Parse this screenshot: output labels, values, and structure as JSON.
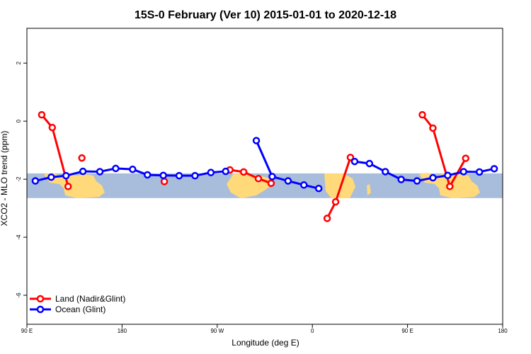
{
  "chart_data": {
    "type": "line",
    "title": "15S-0 February (Ver 10)   2015-01-01 to 2020-12-18",
    "xlabel": "Longitude (deg E)",
    "ylabel": "XCO2 - MLO trend (ppm)",
    "xlim": [
      90,
      540
    ],
    "ylim": [
      -7,
      3.2
    ],
    "x_ticks": [
      {
        "value": 90,
        "label": "90 E"
      },
      {
        "value": 180,
        "label": "180"
      },
      {
        "value": 270,
        "label": "90 W"
      },
      {
        "value": 360,
        "label": "0"
      },
      {
        "value": 450,
        "label": "90 E"
      },
      {
        "value": 540,
        "label": "180"
      }
    ],
    "y_ticks": [
      {
        "value": 2,
        "label": "2"
      },
      {
        "value": 0,
        "label": "0"
      },
      {
        "value": -2,
        "label": "-2"
      },
      {
        "value": -4,
        "label": "-4"
      },
      {
        "value": -6,
        "label": "-6"
      }
    ],
    "grid": false,
    "legend_position": "bottom-left",
    "band": {
      "ymin": -2.65,
      "ymax": -1.8,
      "color": "#a7bddb",
      "land_color": "#ffd97a"
    },
    "series": [
      {
        "name": "Land (Nadir&Glint)",
        "color": "#ff0000",
        "segments": [
          [
            [
              104,
              0.22
            ],
            [
              114,
              -0.22
            ],
            [
              129,
              -2.25
            ]
          ],
          [
            [
              142,
              -1.27
            ]
          ],
          [
            [
              220,
              -2.08
            ]
          ],
          [
            [
              282,
              -1.68
            ],
            [
              295,
              -1.75
            ],
            [
              309,
              -1.98
            ],
            [
              321,
              -2.14
            ]
          ],
          [
            [
              374,
              -3.35
            ],
            [
              382,
              -2.78
            ],
            [
              396,
              -1.25
            ]
          ],
          [
            [
              464,
              0.22
            ],
            [
              474,
              -0.24
            ],
            [
              490,
              -2.25
            ],
            [
              505,
              -1.28
            ]
          ]
        ]
      },
      {
        "name": "Ocean (Glint)",
        "color": "#0000ff",
        "segments": [
          [
            [
              98,
              -2.06
            ],
            [
              113,
              -1.93
            ],
            [
              127,
              -1.88
            ],
            [
              143,
              -1.73
            ],
            [
              159,
              -1.74
            ],
            [
              174,
              -1.63
            ],
            [
              190,
              -1.66
            ],
            [
              204,
              -1.85
            ],
            [
              219,
              -1.87
            ],
            [
              234,
              -1.88
            ],
            [
              249,
              -1.88
            ],
            [
              264,
              -1.77
            ],
            [
              278,
              -1.73
            ]
          ],
          [
            [
              307,
              -0.67
            ],
            [
              322,
              -1.91
            ],
            [
              337,
              -2.06
            ],
            [
              352,
              -2.2
            ],
            [
              366,
              -2.32
            ]
          ],
          [
            [
              400,
              -1.39
            ],
            [
              414,
              -1.46
            ],
            [
              429,
              -1.74
            ],
            [
              444,
              -2.01
            ],
            [
              459,
              -2.06
            ],
            [
              474,
              -1.95
            ],
            [
              488,
              -1.87
            ],
            [
              503,
              -1.74
            ],
            [
              518,
              -1.75
            ],
            [
              532,
              -1.64
            ]
          ]
        ]
      }
    ]
  }
}
